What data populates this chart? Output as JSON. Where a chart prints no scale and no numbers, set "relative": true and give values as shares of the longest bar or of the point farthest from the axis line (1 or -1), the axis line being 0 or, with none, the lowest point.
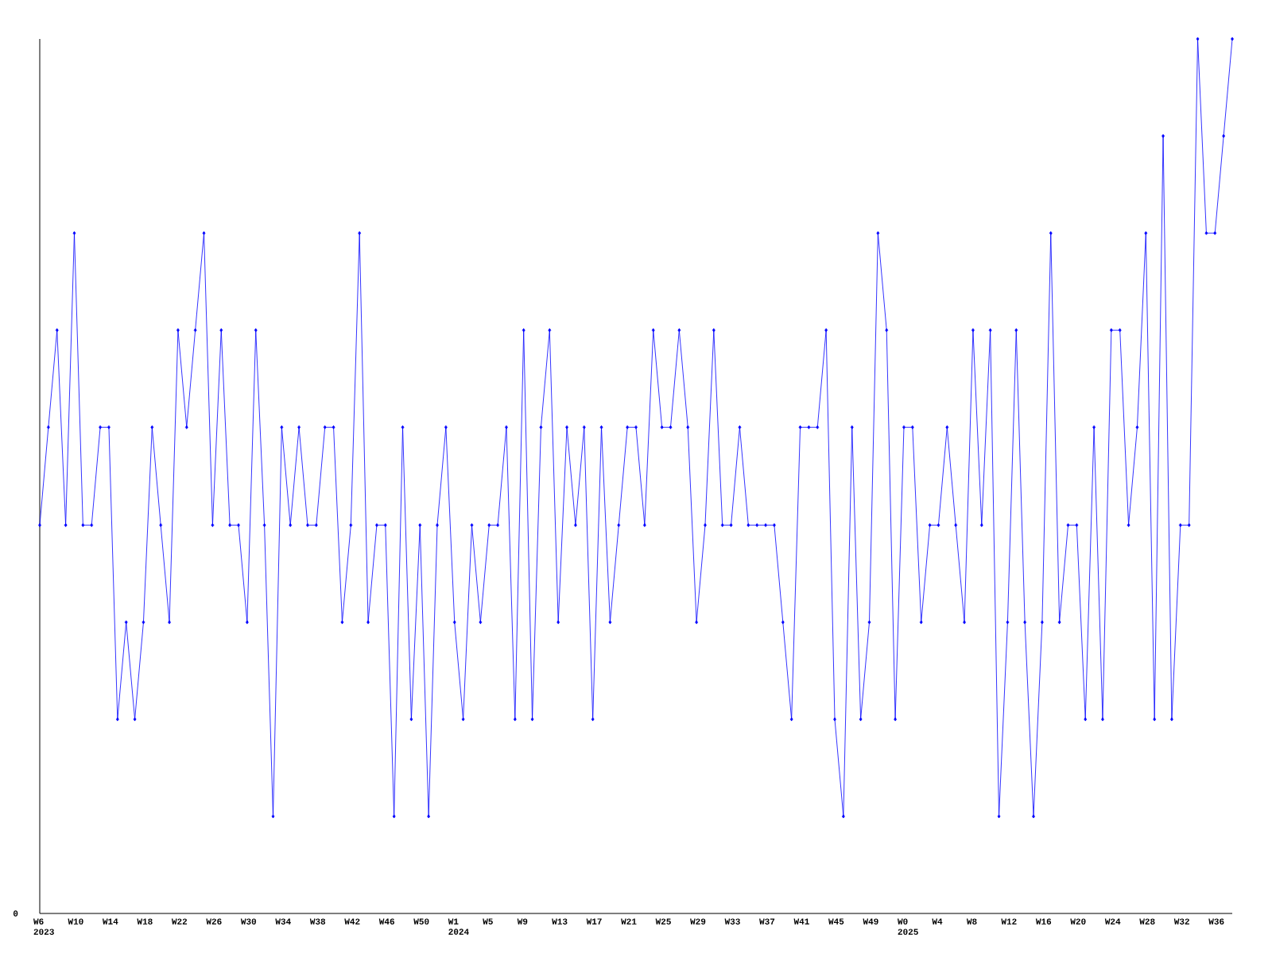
{
  "chart_data": {
    "type": "line",
    "relative": true,
    "color": "#0000ff",
    "marker": "diamond",
    "categories": [
      "W6 2023",
      null,
      null,
      null,
      "W10",
      null,
      null,
      null,
      "W14",
      null,
      null,
      null,
      "W18",
      null,
      null,
      null,
      "W22",
      null,
      null,
      null,
      "W26",
      null,
      null,
      null,
      "W30",
      null,
      null,
      null,
      "W34",
      null,
      null,
      null,
      "W38",
      null,
      null,
      null,
      "W42",
      null,
      null,
      null,
      "W46",
      null,
      null,
      null,
      "W50",
      null,
      null,
      null,
      "W1 2024",
      null,
      null,
      null,
      "W5",
      null,
      null,
      null,
      "W9",
      null,
      null,
      null,
      "W13",
      null,
      null,
      null,
      "W17",
      null,
      null,
      null,
      "W21",
      null,
      null,
      null,
      "W25",
      null,
      null,
      null,
      "W29",
      null,
      null,
      null,
      "W33",
      null,
      null,
      null,
      "W37",
      null,
      null,
      null,
      "W41",
      null,
      null,
      null,
      "W45",
      null,
      null,
      null,
      "W49",
      null,
      null,
      null,
      "W0 2025",
      null,
      null,
      null,
      "W4",
      null,
      null,
      null,
      "W8",
      null,
      null,
      null,
      "W12",
      null,
      null,
      null,
      "W16",
      null,
      null,
      null,
      "W20",
      null,
      null,
      null,
      "W24",
      null,
      null,
      null,
      "W28",
      null,
      null,
      null,
      "W32",
      null,
      null,
      null,
      "W36",
      null,
      null
    ],
    "values": [
      0.444,
      0.556,
      0.667,
      0.444,
      0.778,
      0.444,
      0.444,
      0.556,
      0.556,
      0.222,
      0.333,
      0.222,
      0.333,
      0.556,
      0.444,
      0.333,
      0.667,
      0.556,
      0.667,
      0.778,
      0.444,
      0.667,
      0.444,
      0.444,
      0.333,
      0.667,
      0.444,
      0.111,
      0.556,
      0.444,
      0.556,
      0.444,
      0.444,
      0.556,
      0.556,
      0.333,
      0.444,
      0.778,
      0.333,
      0.444,
      0.444,
      0.111,
      0.556,
      0.222,
      0.444,
      0.111,
      0.444,
      0.556,
      0.333,
      0.222,
      0.444,
      0.333,
      0.444,
      0.444,
      0.556,
      0.222,
      0.667,
      0.222,
      0.556,
      0.667,
      0.333,
      0.556,
      0.444,
      0.556,
      0.222,
      0.556,
      0.333,
      0.444,
      0.556,
      0.556,
      0.444,
      0.667,
      0.556,
      0.556,
      0.667,
      0.556,
      0.333,
      0.444,
      0.667,
      0.444,
      0.444,
      0.556,
      0.444,
      0.444,
      0.444,
      0.444,
      0.333,
      0.222,
      0.556,
      0.556,
      0.556,
      0.667,
      0.222,
      0.111,
      0.556,
      0.222,
      0.333,
      0.778,
      0.667,
      0.222,
      0.556,
      0.556,
      0.333,
      0.444,
      0.444,
      0.556,
      0.444,
      0.333,
      0.667,
      0.444,
      0.667,
      0.111,
      0.333,
      0.667,
      0.333,
      0.111,
      0.333,
      0.778,
      0.333,
      0.444,
      0.444,
      0.222,
      0.556,
      0.222,
      0.667,
      0.667,
      0.444,
      0.556,
      0.778,
      0.222,
      0.889,
      0.222,
      0.444,
      0.444,
      1,
      0.778,
      0.778,
      0.889,
      1
    ],
    "annotations": [
      "0"
    ]
  }
}
